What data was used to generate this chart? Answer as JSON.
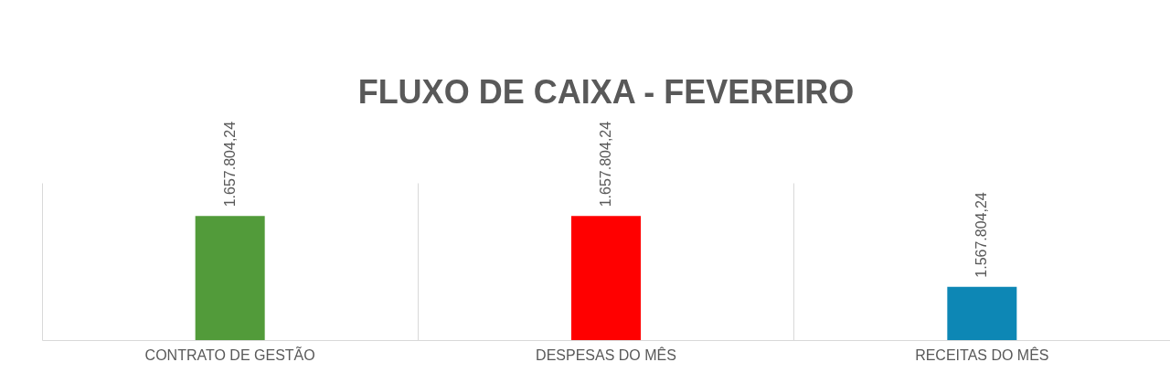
{
  "chart_data": {
    "type": "bar",
    "title": "FLUXO DE CAIXA - FEVEREIRO",
    "categories": [
      "CONTRATO DE GESTÃO",
      "DESPESAS DO MÊS",
      "RECEITAS DO MÊS"
    ],
    "values": [
      1657804.24,
      1657804.24,
      1567804.24
    ],
    "colors": [
      "#529b3a",
      "#ff0000",
      "#0d87b5"
    ],
    "value_labels": [
      "1.657.804,24",
      "1.657.804,24",
      "1.567.804,24"
    ],
    "ylim": [
      1500000,
      1700000
    ],
    "grid": "x"
  }
}
